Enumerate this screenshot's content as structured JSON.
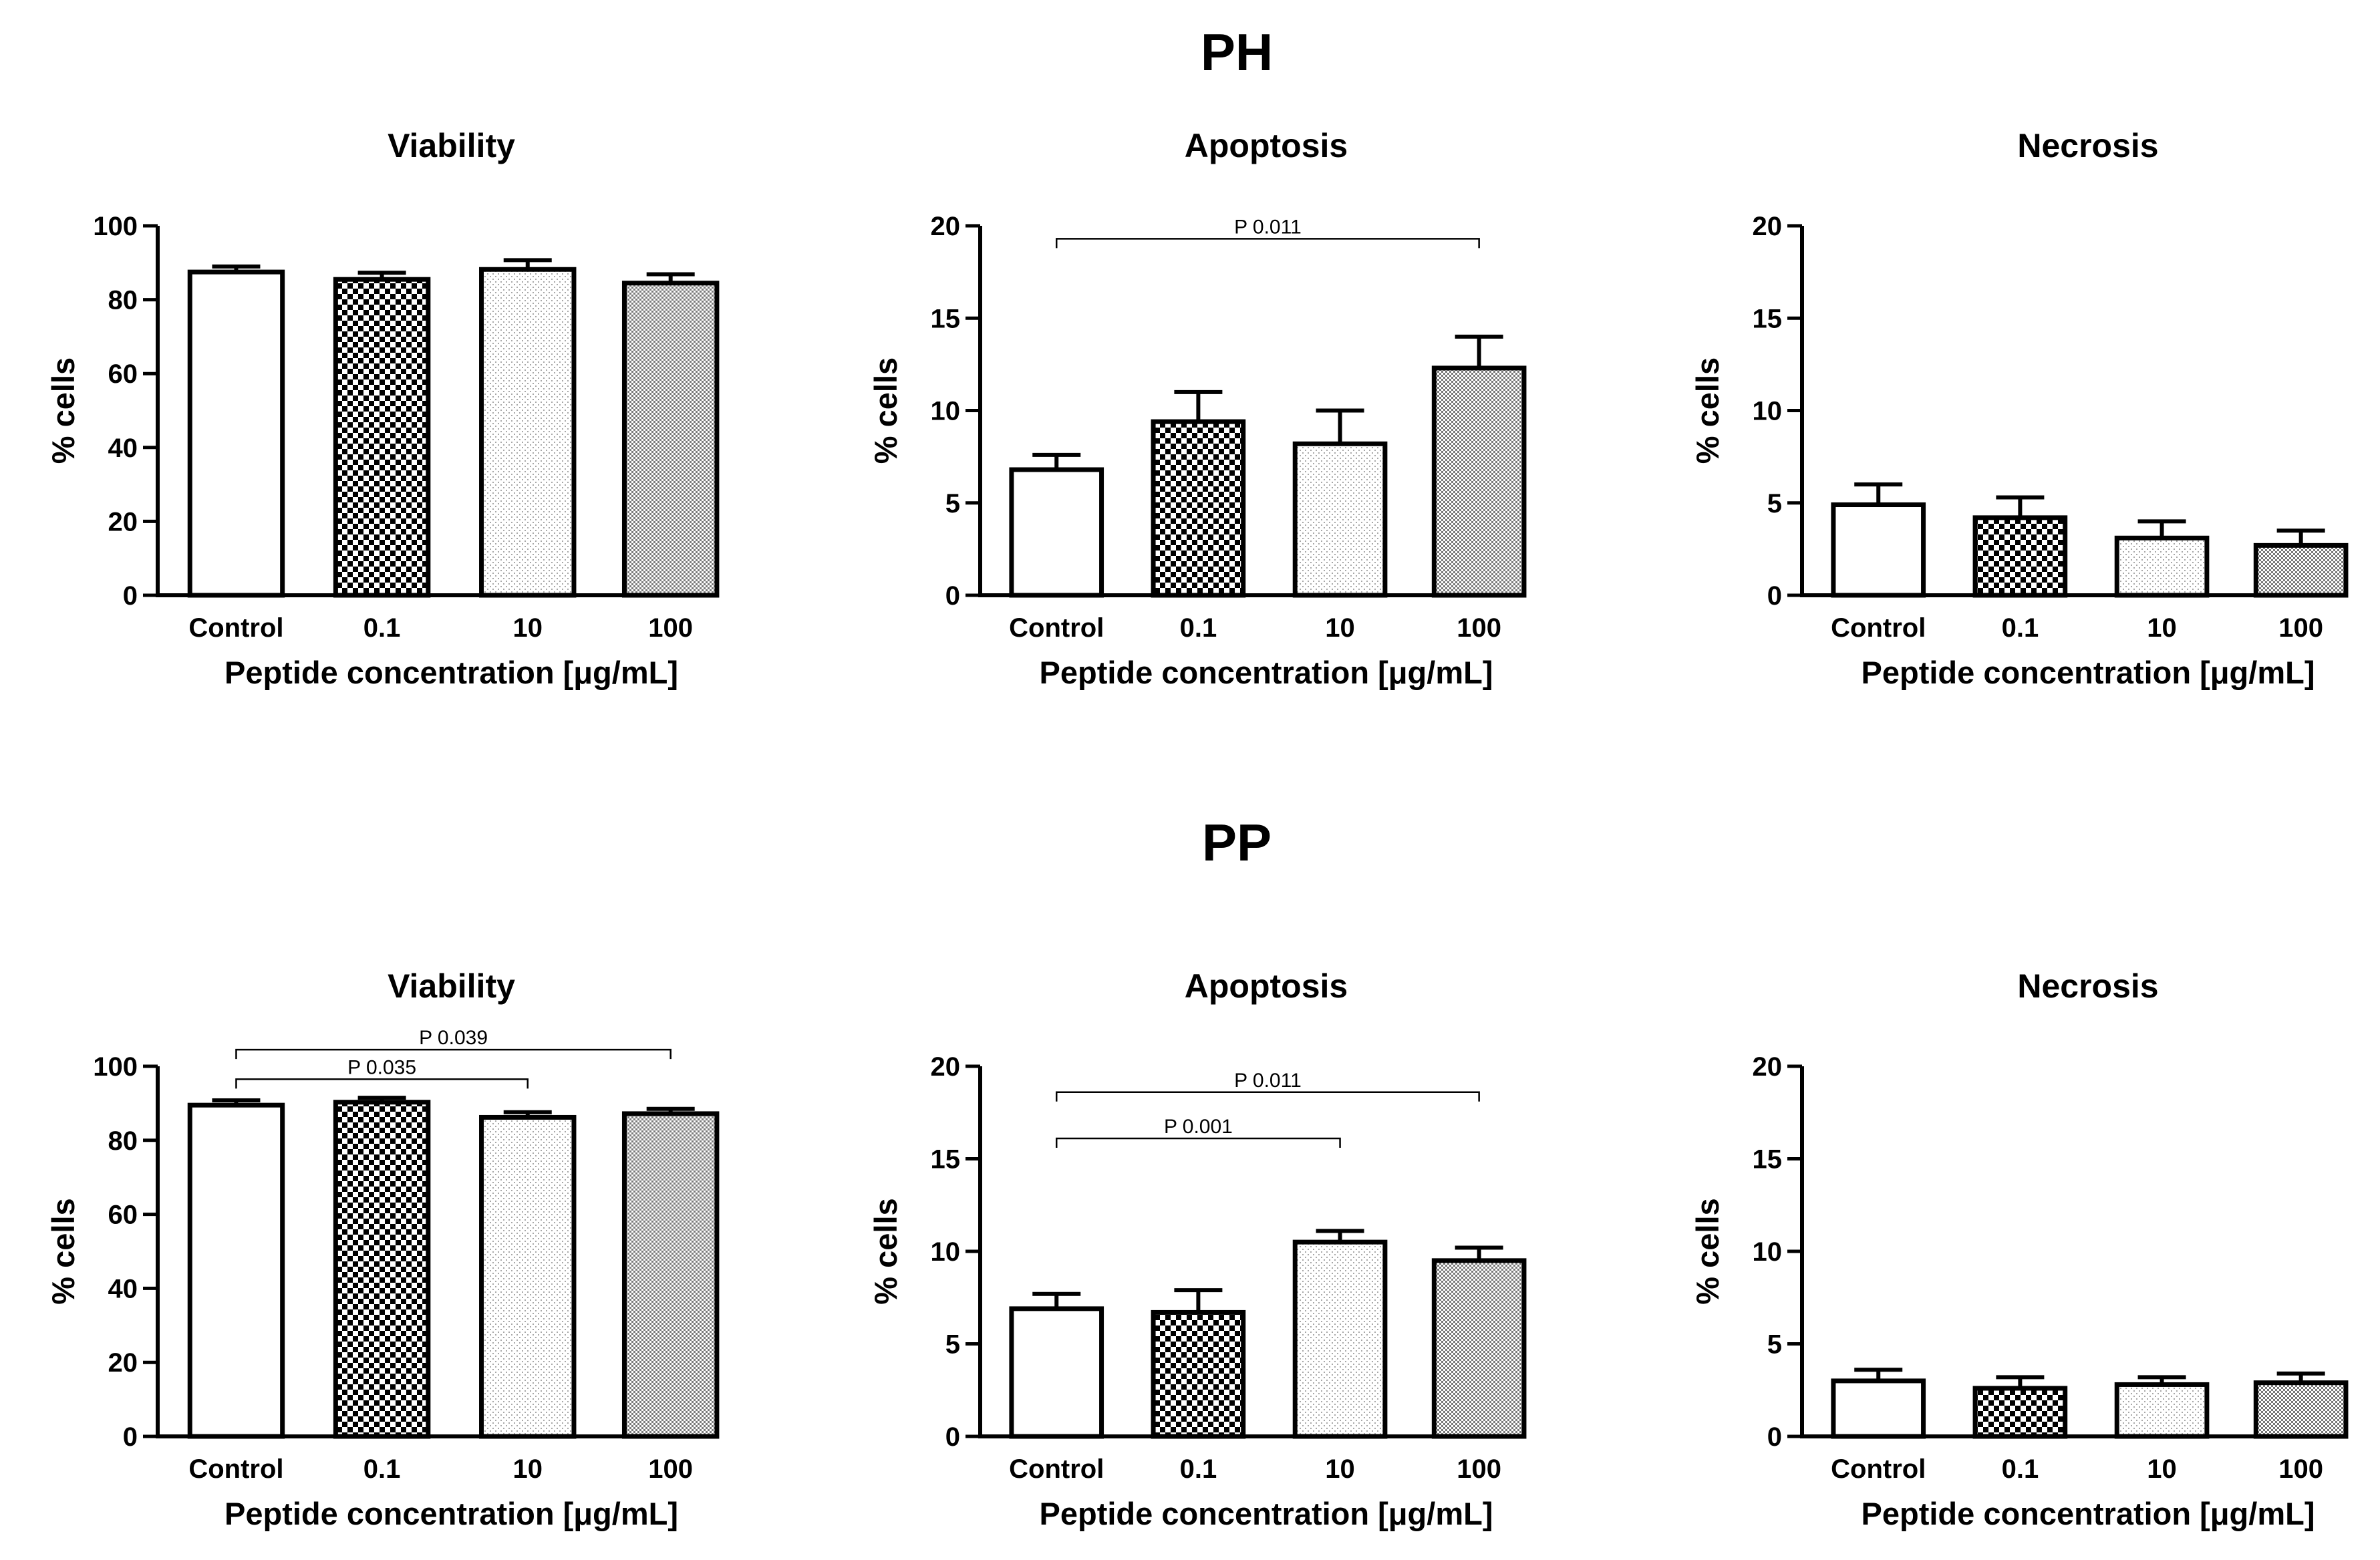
{
  "groups": [
    {
      "title": "PH"
    },
    {
      "title": "PP"
    }
  ],
  "chart_data": [
    {
      "type": "bar",
      "group": "PH",
      "title": "Viability",
      "categories": [
        "Control",
        "0.1",
        "10",
        "100"
      ],
      "values": [
        87.5,
        85.5,
        88.2,
        84.5
      ],
      "errors": [
        1.5,
        1.8,
        2.5,
        2.4
      ],
      "ylim": [
        0,
        100
      ],
      "yticks": [
        0,
        20,
        40,
        60,
        80,
        100
      ],
      "xlabel": "Peptide concentration [μg/mL]",
      "ylabel": "% cells",
      "fills": [
        "#ffffff",
        "checker",
        "dots",
        "fine-check"
      ],
      "significance": []
    },
    {
      "type": "bar",
      "group": "PH",
      "title": "Apoptosis",
      "categories": [
        "Control",
        "0.1",
        "10",
        "100"
      ],
      "values": [
        6.8,
        9.4,
        8.2,
        12.3
      ],
      "errors": [
        0.8,
        1.6,
        1.8,
        1.7
      ],
      "ylim": [
        0,
        20
      ],
      "yticks": [
        0,
        5,
        10,
        15,
        20
      ],
      "xlabel": "Peptide concentration [μg/mL]",
      "ylabel": "% cells",
      "fills": [
        "#ffffff",
        "checker",
        "dots",
        "fine-check"
      ],
      "significance": [
        {
          "from": 0,
          "to": 3,
          "y": 19.3,
          "label": "P 0.011"
        }
      ]
    },
    {
      "type": "bar",
      "group": "PH",
      "title": "Necrosis",
      "categories": [
        "Control",
        "0.1",
        "10",
        "100"
      ],
      "values": [
        4.9,
        4.2,
        3.1,
        2.7
      ],
      "errors": [
        1.1,
        1.1,
        0.9,
        0.8
      ],
      "ylim": [
        0,
        20
      ],
      "yticks": [
        0,
        5,
        10,
        15,
        20
      ],
      "xlabel": "Peptide concentration [μg/mL]",
      "ylabel": "% cells",
      "fills": [
        "#ffffff",
        "checker",
        "dots",
        "fine-check"
      ],
      "significance": []
    },
    {
      "type": "bar",
      "group": "PP",
      "title": "Viability",
      "categories": [
        "Control",
        "0.1",
        "10",
        "100"
      ],
      "values": [
        89.5,
        90.3,
        86.2,
        87.2
      ],
      "errors": [
        1.3,
        1.2,
        1.4,
        1.3
      ],
      "ylim": [
        0,
        100
      ],
      "yticks": [
        0,
        20,
        40,
        60,
        80,
        100
      ],
      "xlabel": "Peptide concentration [μg/mL]",
      "ylabel": "% cells",
      "fills": [
        "#ffffff",
        "checker",
        "dots",
        "fine-check"
      ],
      "significance": [
        {
          "from": 0,
          "to": 2,
          "y": 96.5,
          "label": "P 0.035"
        },
        {
          "from": 0,
          "to": 3,
          "y": 104.5,
          "label": "P 0.039"
        }
      ]
    },
    {
      "type": "bar",
      "group": "PP",
      "title": "Apoptosis",
      "categories": [
        "Control",
        "0.1",
        "10",
        "100"
      ],
      "values": [
        6.9,
        6.7,
        10.5,
        9.5
      ],
      "errors": [
        0.8,
        1.2,
        0.6,
        0.7
      ],
      "ylim": [
        0,
        20
      ],
      "yticks": [
        0,
        5,
        10,
        15,
        20
      ],
      "xlabel": "Peptide concentration [μg/mL]",
      "ylabel": "% cells",
      "fills": [
        "#ffffff",
        "checker",
        "dots",
        "fine-check"
      ],
      "significance": [
        {
          "from": 0,
          "to": 2,
          "y": 16.1,
          "label": "P 0.001"
        },
        {
          "from": 0,
          "to": 3,
          "y": 18.6,
          "label": "P 0.011"
        }
      ]
    },
    {
      "type": "bar",
      "group": "PP",
      "title": "Necrosis",
      "categories": [
        "Control",
        "0.1",
        "10",
        "100"
      ],
      "values": [
        3.0,
        2.6,
        2.8,
        2.9
      ],
      "errors": [
        0.6,
        0.6,
        0.4,
        0.5
      ],
      "ylim": [
        0,
        20
      ],
      "yticks": [
        0,
        5,
        10,
        15,
        20
      ],
      "xlabel": "Peptide concentration [μg/mL]",
      "ylabel": "% cells",
      "fills": [
        "#ffffff",
        "checker",
        "dots",
        "fine-check"
      ],
      "significance": []
    }
  ]
}
